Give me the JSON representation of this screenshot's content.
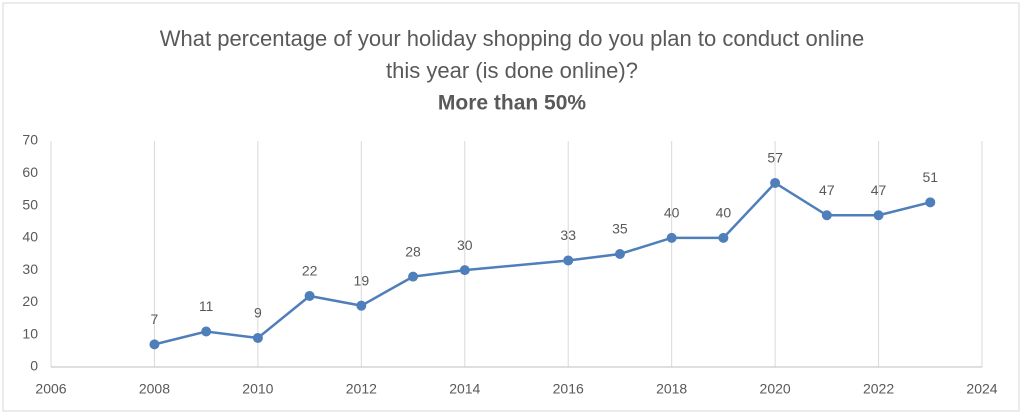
{
  "chart_data": {
    "type": "line",
    "title": [
      "What percentage of your holiday shopping do you plan to conduct online",
      "this year (is done online)?"
    ],
    "subtitle": "More than 50%",
    "x": [
      2008,
      2009,
      2010,
      2011,
      2012,
      2013,
      2014,
      2016,
      2017,
      2018,
      2019,
      2020,
      2021,
      2022,
      2023
    ],
    "series": [
      {
        "color": "#4f7fba",
        "values": [
          7,
          11,
          9,
          22,
          19,
          28,
          30,
          33,
          35,
          40,
          40,
          57,
          47,
          47,
          51
        ]
      }
    ],
    "xlim": [
      2006,
      2024
    ],
    "xticks": [
      2006,
      2008,
      2010,
      2012,
      2014,
      2016,
      2018,
      2020,
      2022,
      2024
    ],
    "ylim": [
      0,
      70
    ],
    "yticks": [
      0,
      10,
      20,
      30,
      40,
      50,
      60,
      70
    ],
    "xgrid": true
  }
}
